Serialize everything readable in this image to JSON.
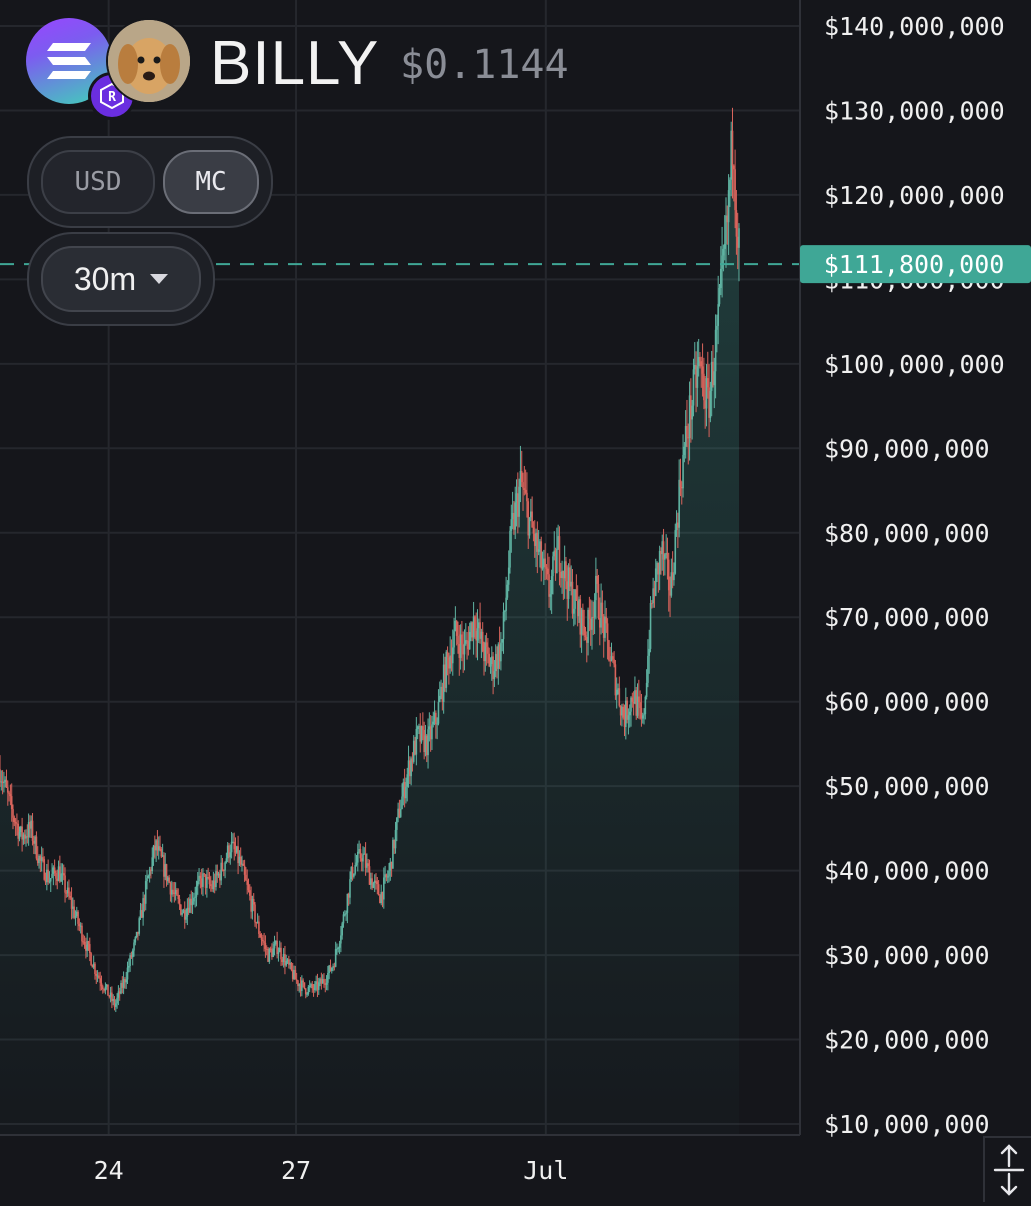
{
  "header": {
    "token_name": "BILLY",
    "price": "$0.1144",
    "chain_icon": "solana-icon",
    "dex_icon": "raydium-icon",
    "avatar": "dog-avatar"
  },
  "toggles": {
    "usd_label": "USD",
    "mc_label": "MC",
    "active": "MC"
  },
  "interval": {
    "label": "30m"
  },
  "current_marker": {
    "label": "$111,800,000",
    "value": 111800000,
    "color": "#3fa796"
  },
  "colors": {
    "up": "#5fb3a2",
    "down": "#d9645c",
    "background": "#15161b",
    "grid": "#25272d"
  },
  "chart_data": {
    "type": "candlestick",
    "title": "",
    "xlabel": "",
    "ylabel": "",
    "y_axis_side": "right",
    "ylim": [
      10000000,
      140000000
    ],
    "y_ticks": [
      140000000,
      130000000,
      120000000,
      110000000,
      100000000,
      90000000,
      80000000,
      70000000,
      60000000,
      50000000,
      40000000,
      30000000,
      20000000,
      10000000
    ],
    "y_tick_labels": [
      "$140,000,000",
      "$130,000,000",
      "$120,000,000",
      "$110,000,000",
      "$100,000,000",
      "$90,000,000",
      "$80,000,000",
      "$70,000,000",
      "$60,000,000",
      "$50,000,000",
      "$40,000,000",
      "$30,000,000",
      "$20,000,000",
      "$10,000,000"
    ],
    "x_ticks": [
      "24",
      "27",
      "Jul"
    ],
    "x_tick_days": [
      0,
      3,
      7
    ],
    "x_domain_days": [
      -1.74,
      11.07
    ],
    "grid": true,
    "series": [
      {
        "points": [
          [
            -1.74,
            52
          ],
          [
            -1.55,
            47
          ],
          [
            -1.4,
            44
          ],
          [
            -1.25,
            45
          ],
          [
            -1.1,
            41
          ],
          [
            -0.95,
            39
          ],
          [
            -0.8,
            40
          ],
          [
            -0.65,
            37
          ],
          [
            -0.5,
            34
          ],
          [
            -0.35,
            31
          ],
          [
            -0.2,
            28
          ],
          [
            -0.05,
            26
          ],
          [
            0.1,
            24
          ],
          [
            0.25,
            27
          ],
          [
            0.45,
            32
          ],
          [
            0.6,
            38
          ],
          [
            0.75,
            43
          ],
          [
            0.9,
            40
          ],
          [
            1.05,
            37
          ],
          [
            1.2,
            35
          ],
          [
            1.35,
            37
          ],
          [
            1.5,
            39
          ],
          [
            1.65,
            38
          ],
          [
            1.8,
            40
          ],
          [
            1.95,
            43
          ],
          [
            2.1,
            41
          ],
          [
            2.25,
            37
          ],
          [
            2.4,
            33
          ],
          [
            2.55,
            30
          ],
          [
            2.7,
            31
          ],
          [
            2.85,
            29
          ],
          [
            3.0,
            27
          ],
          [
            3.15,
            26
          ],
          [
            3.3,
            26
          ],
          [
            3.45,
            27
          ],
          [
            3.6,
            29
          ],
          [
            3.75,
            34
          ],
          [
            3.9,
            40
          ],
          [
            4.05,
            42
          ],
          [
            4.2,
            39
          ],
          [
            4.35,
            37
          ],
          [
            4.5,
            40
          ],
          [
            4.65,
            47
          ],
          [
            4.8,
            52
          ],
          [
            4.95,
            56
          ],
          [
            5.1,
            55
          ],
          [
            5.25,
            58
          ],
          [
            5.4,
            64
          ],
          [
            5.55,
            68
          ],
          [
            5.7,
            66
          ],
          [
            5.85,
            70
          ],
          [
            6.0,
            66
          ],
          [
            6.15,
            64
          ],
          [
            6.3,
            67
          ],
          [
            6.45,
            80
          ],
          [
            6.6,
            86
          ],
          [
            6.75,
            81
          ],
          [
            6.9,
            77
          ],
          [
            7.05,
            73
          ],
          [
            7.2,
            78
          ],
          [
            7.35,
            74
          ],
          [
            7.5,
            71
          ],
          [
            7.65,
            68
          ],
          [
            7.8,
            73
          ],
          [
            7.95,
            68
          ],
          [
            8.1,
            63
          ],
          [
            8.25,
            58
          ],
          [
            8.4,
            61
          ],
          [
            8.55,
            57
          ],
          [
            8.7,
            72
          ],
          [
            8.85,
            78
          ],
          [
            9.0,
            73
          ],
          [
            9.15,
            86
          ],
          [
            9.3,
            94
          ],
          [
            9.45,
            100
          ],
          [
            9.6,
            95
          ],
          [
            9.75,
            104
          ],
          [
            9.9,
            116
          ],
          [
            10.0,
            128
          ],
          [
            10.05,
            118
          ],
          [
            10.1,
            113
          ]
        ]
      }
    ]
  },
  "scale_button": {
    "icon": "swap-vertical-icon"
  }
}
